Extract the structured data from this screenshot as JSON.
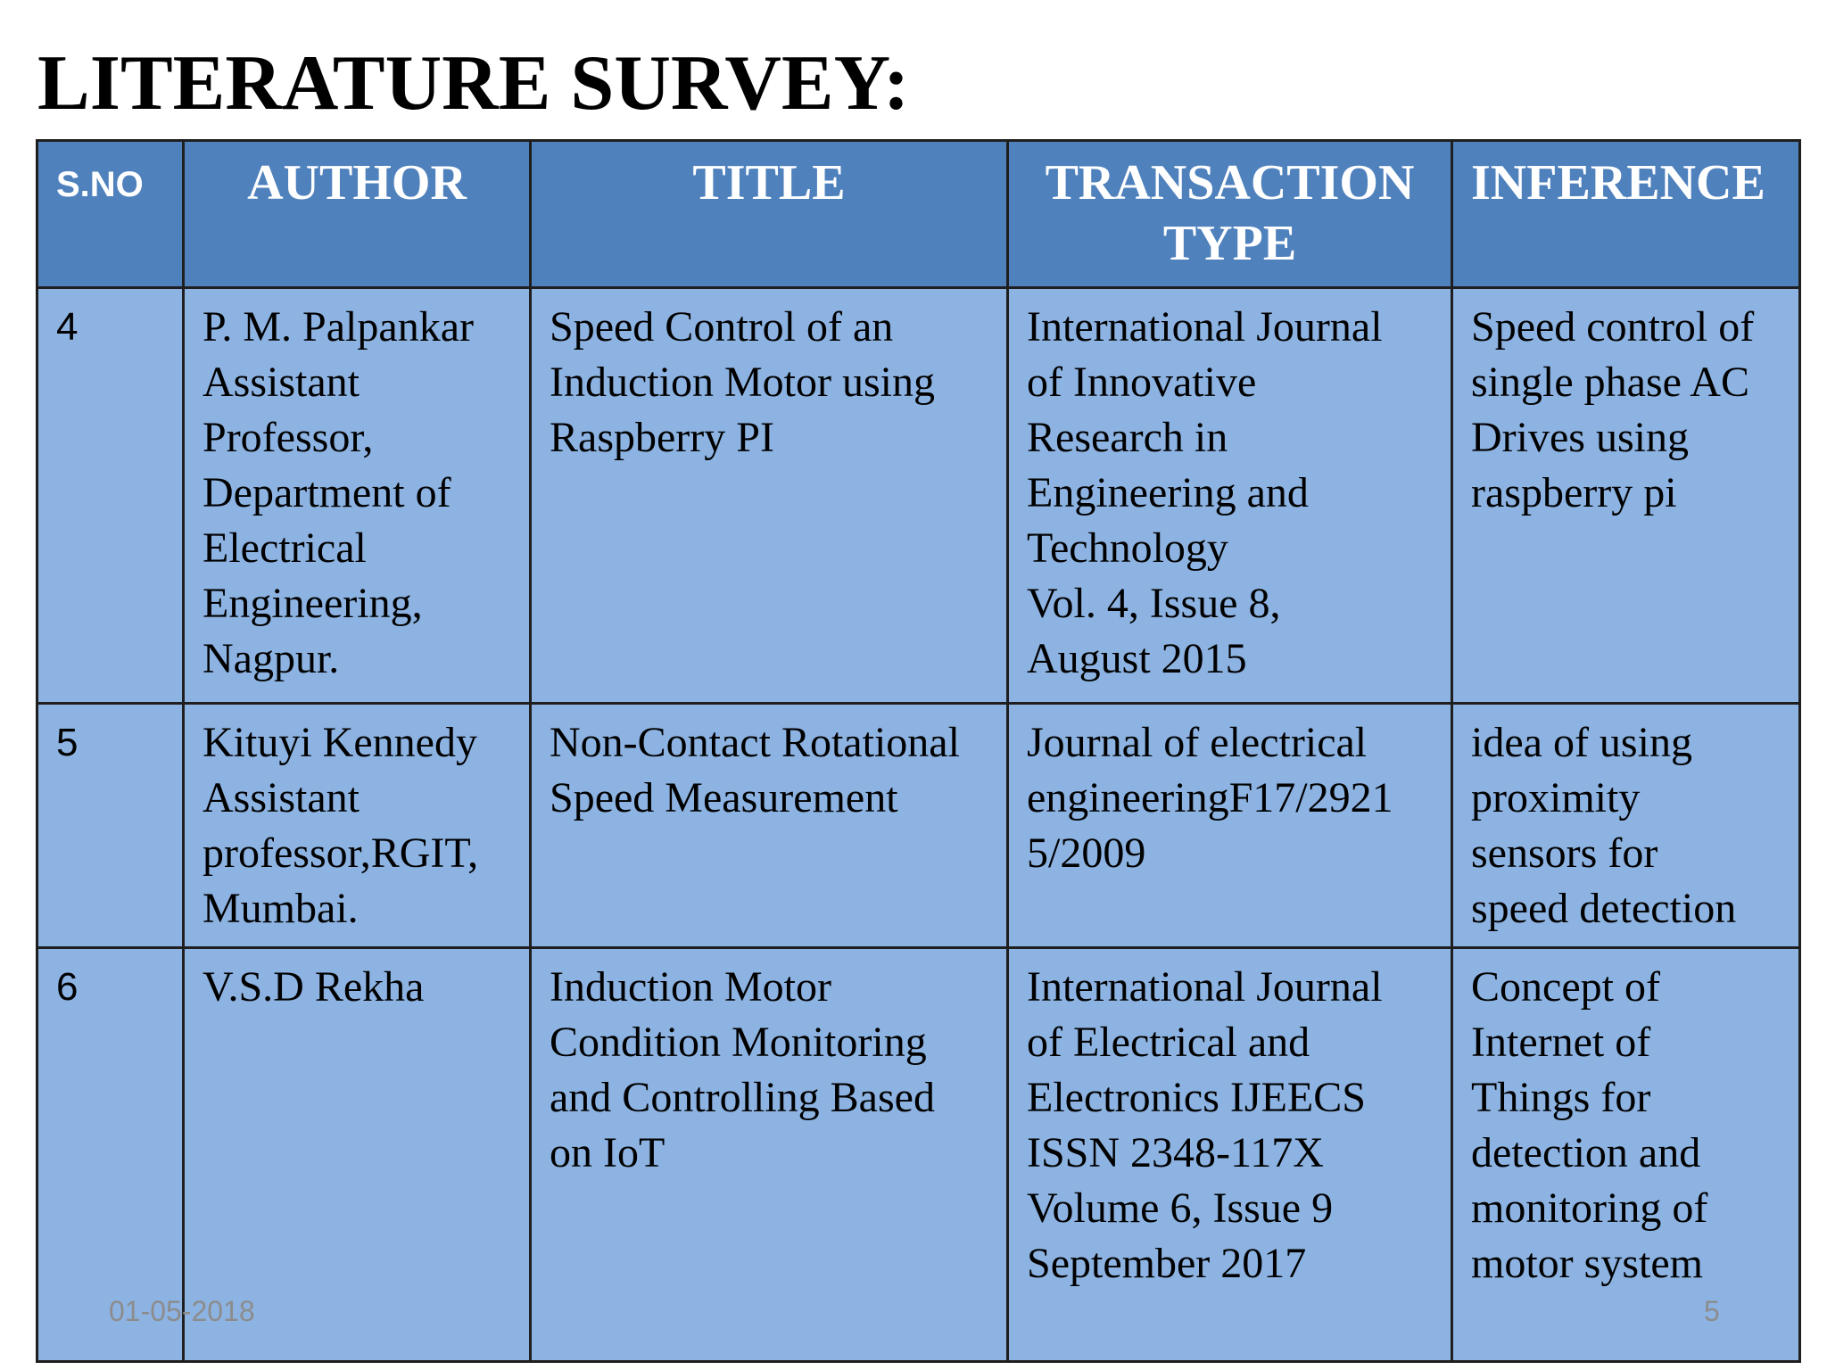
{
  "slide": {
    "title": "LITERATURE SURVEY:",
    "date": "01-05-2018",
    "page_number": "5"
  },
  "table": {
    "headers": {
      "sno": "S.NO",
      "author": "AUTHOR",
      "title": "TITLE",
      "transaction_type": "TRANSACTION TYPE",
      "inference": "INFERENCE"
    },
    "rows": [
      {
        "sno": "4",
        "author": "P. M. Palpankar\nAssistant\nProfessor,\nDepartment of\nElectrical\nEngineering,\nNagpur.",
        "title": " Speed Control of an\nInduction Motor using\nRaspberry PI",
        "transaction_type": "International Journal\nof Innovative\nResearch in\nEngineering and\nTechnology\nVol. 4, Issue 8,\nAugust 2015",
        "inference": "Speed control of\nsingle phase AC\nDrives using\nraspberry pi"
      },
      {
        "sno": "5",
        "author": "Kituyi Kennedy\nAssistant\nprofessor,RGIT,\nMumbai.",
        "title": "Non-Contact Rotational\nSpeed Measurement",
        "transaction_type": "Journal of electrical\nengineeringF17/2921\n5/2009",
        "inference": "idea of using\nproximity\nsensors for\nspeed detection"
      },
      {
        "sno": "6",
        "author": "V.S.D Rekha",
        "title": "Induction Motor\nCondition Monitoring\nand Controlling Based\non IoT",
        "transaction_type": "International Journal\nof Electrical and\nElectronics IJEECS\nISSN 2348-117X\nVolume 6, Issue 9\nSeptember 2017",
        "inference": "Concept of\nInternet of\nThings for\ndetection and\nmonitoring of\nmotor system"
      }
    ]
  }
}
